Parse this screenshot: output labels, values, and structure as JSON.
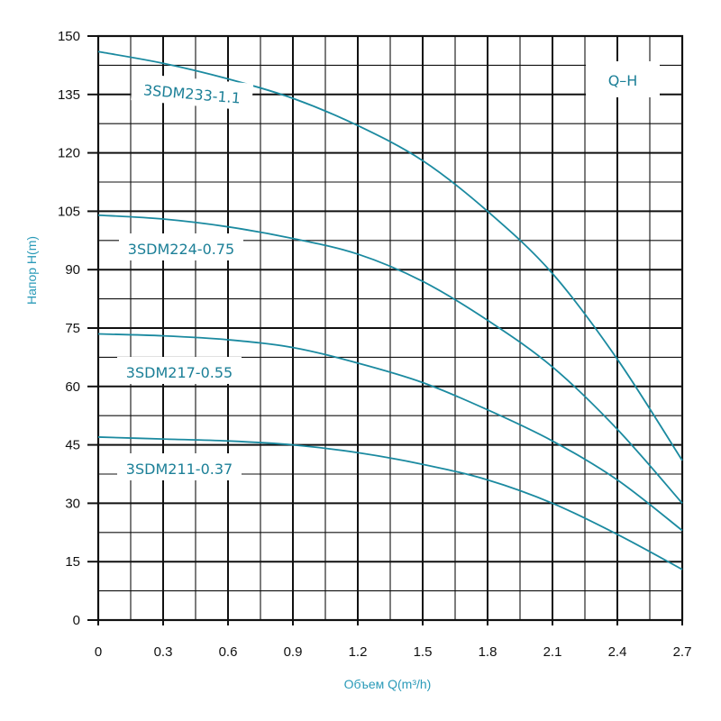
{
  "colors": {
    "curve": "#1b8aa0",
    "grid": "#111111",
    "axis_title": "#2a9ab8",
    "label": "#1b7f97"
  },
  "chart_data": {
    "type": "line",
    "badge": "Q–H",
    "xlabel": "Объем Q(m³/h)",
    "ylabel": "Напор H(m)",
    "xlim": [
      0,
      2.7
    ],
    "ylim": [
      0,
      150
    ],
    "x_ticks": [
      0,
      0.3,
      0.6,
      0.9,
      1.2,
      1.5,
      1.8,
      2.1,
      2.4,
      2.7
    ],
    "x_tick_labels": [
      "0",
      "0.3",
      "0.6",
      "0.9",
      "1.2",
      "1.5",
      "1.8",
      "2.1",
      "2.4",
      "2.7"
    ],
    "y_ticks": [
      0,
      15,
      30,
      45,
      60,
      75,
      90,
      105,
      120,
      135,
      150
    ],
    "y_tick_labels": [
      "0",
      "15",
      "30",
      "45",
      "60",
      "75",
      "90",
      "105",
      "120",
      "135",
      "150"
    ],
    "x_minor_step": 0.15,
    "y_minor_step": 7.5,
    "grid": true,
    "series": [
      {
        "name": "3SDM233-1.1",
        "x": [
          0,
          0.3,
          0.6,
          0.9,
          1.2,
          1.5,
          1.8,
          2.1,
          2.4,
          2.7
        ],
        "y": [
          146,
          143,
          139,
          134,
          127,
          118,
          105,
          89,
          67,
          41
        ]
      },
      {
        "name": "3SDM224-0.75",
        "x": [
          0,
          0.3,
          0.6,
          0.9,
          1.2,
          1.5,
          1.8,
          2.1,
          2.4,
          2.7
        ],
        "y": [
          104,
          103,
          101,
          98,
          94,
          87,
          77,
          65,
          49,
          30
        ]
      },
      {
        "name": "3SDM217-0.55",
        "x": [
          0,
          0.3,
          0.6,
          0.9,
          1.2,
          1.5,
          1.8,
          2.1,
          2.4,
          2.7
        ],
        "y": [
          73.5,
          73,
          72,
          70,
          66,
          61,
          54,
          46,
          36,
          23
        ]
      },
      {
        "name": "3SDM211-0.37",
        "x": [
          0,
          0.3,
          0.6,
          0.9,
          1.2,
          1.5,
          1.8,
          2.1,
          2.4,
          2.7
        ],
        "y": [
          47,
          46.5,
          46,
          45,
          43,
          40,
          36,
          30,
          22,
          13
        ]
      }
    ]
  }
}
